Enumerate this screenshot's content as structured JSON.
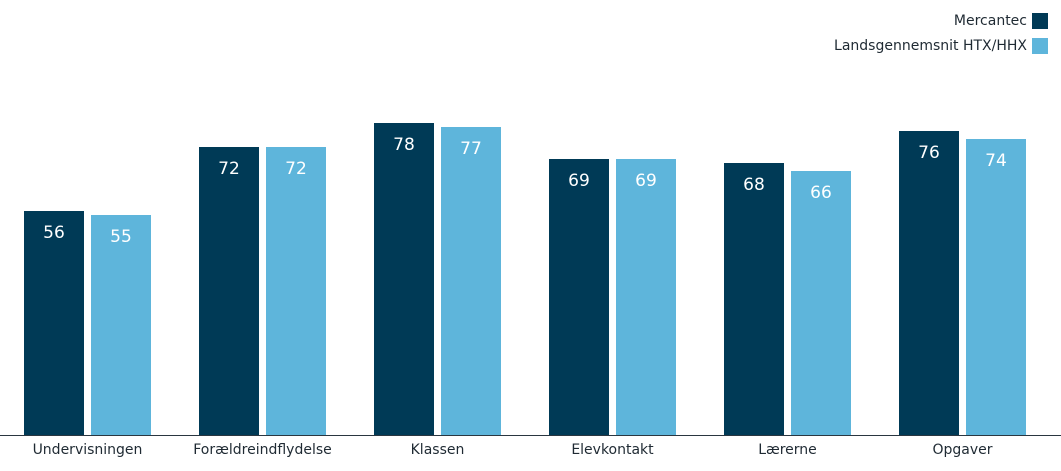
{
  "chart_data": {
    "type": "bar",
    "categories": [
      "Undervisningen",
      "Forældreindflydelse",
      "Klassen",
      "Elevkontakt",
      "Lærerne",
      "Opgaver"
    ],
    "series": [
      {
        "name": "Mercantec",
        "color": "#003a56",
        "values": [
          56,
          72,
          78,
          69,
          68,
          76
        ]
      },
      {
        "name": "Landsgennemsnit HTX/HHX",
        "color": "#5eb5db",
        "values": [
          55,
          72,
          77,
          69,
          66,
          74
        ]
      }
    ],
    "title": "",
    "xlabel": "",
    "ylabel": "",
    "ylim": [
      0,
      100
    ],
    "grid": false,
    "legend_position": "top-right"
  }
}
